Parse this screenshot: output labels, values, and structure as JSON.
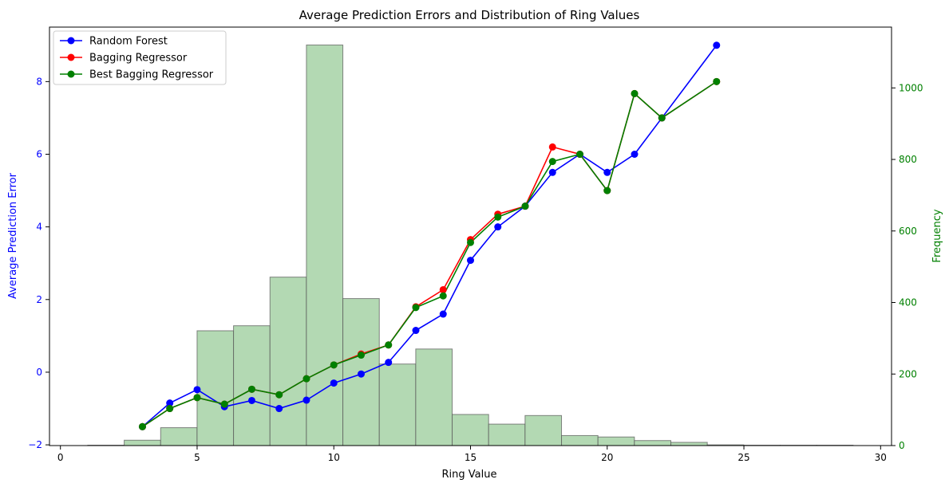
{
  "chart_data": {
    "type": "line",
    "title": "Average Prediction Errors and Distribution of Ring Values",
    "xlabel": "Ring Value",
    "ylabel": "Average Prediction Error",
    "ylabel_right": "Frequency",
    "xlim": [
      -0.4,
      30.4
    ],
    "ylim": [
      -2.02,
      9.5
    ],
    "ylim_right": [
      0,
      1170
    ],
    "x_ticks": [
      0,
      5,
      10,
      15,
      20,
      25,
      30
    ],
    "y_ticks": [
      -2,
      0,
      2,
      4,
      6,
      8
    ],
    "y_ticks_right": [
      0,
      200,
      400,
      600,
      800,
      1000
    ],
    "grid": false,
    "legend_position": "top-left",
    "colors": {
      "left_axis": "#0000ff",
      "right_axis": "#008000",
      "hist_fill": "#b3d9b3",
      "hist_edge": "#555555",
      "axis": "#000000"
    },
    "series": [
      {
        "name": "Random Forest",
        "color": "#0000ff",
        "x": [
          3,
          4,
          5,
          6,
          7,
          8,
          9,
          10,
          11,
          12,
          13,
          14,
          15,
          16,
          17,
          18,
          19,
          20,
          21,
          22,
          24
        ],
        "y": [
          -1.5,
          -0.85,
          -0.48,
          -0.95,
          -0.78,
          -1.0,
          -0.77,
          -0.3,
          -0.05,
          0.27,
          1.15,
          1.6,
          3.08,
          4.0,
          4.57,
          5.5,
          6.0,
          5.5,
          6.0,
          7.0,
          9.0
        ]
      },
      {
        "name": "Bagging Regressor",
        "color": "#ff0000",
        "x": [
          3,
          4,
          5,
          6,
          7,
          8,
          9,
          10,
          11,
          12,
          13,
          14,
          15,
          16,
          17,
          18,
          19,
          20,
          21,
          22,
          24
        ],
        "y": [
          -1.5,
          -1.0,
          -0.7,
          -0.88,
          -0.47,
          -0.62,
          -0.18,
          0.2,
          0.5,
          0.75,
          1.8,
          2.27,
          3.65,
          4.35,
          4.57,
          6.2,
          6.0,
          5.0,
          7.67,
          7.0,
          8.0
        ]
      },
      {
        "name": "Best Bagging Regressor",
        "color": "#008000",
        "x": [
          3,
          4,
          5,
          6,
          7,
          8,
          9,
          10,
          11,
          12,
          13,
          14,
          15,
          16,
          17,
          18,
          19,
          20,
          21,
          22,
          24
        ],
        "y": [
          -1.5,
          -1.0,
          -0.7,
          -0.88,
          -0.47,
          -0.62,
          -0.18,
          0.2,
          0.47,
          0.75,
          1.78,
          2.1,
          3.57,
          4.27,
          4.57,
          5.8,
          6.0,
          5.0,
          7.67,
          7.0,
          8.0
        ]
      }
    ],
    "histogram": {
      "bin_start": 1,
      "bin_width": 1.333,
      "counts": [
        1,
        15,
        50,
        321,
        335,
        471,
        1120,
        411,
        228,
        270,
        87,
        60,
        84,
        28,
        24,
        14,
        9,
        2,
        1,
        1,
        1
      ]
    }
  }
}
